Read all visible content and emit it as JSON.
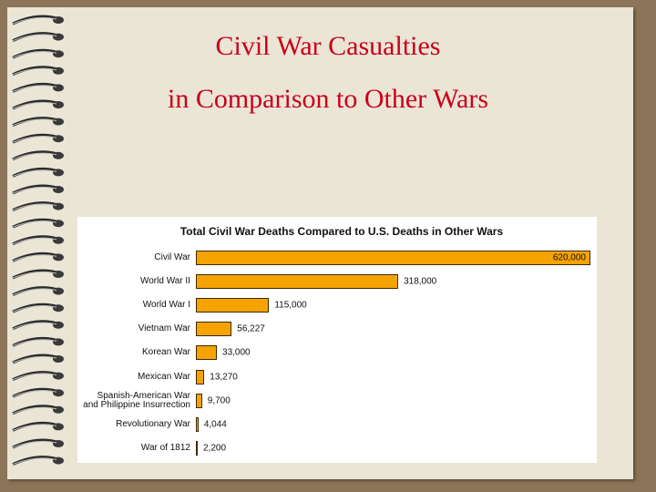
{
  "slide_title": [
    "Civil War Casualties",
    "in Comparison to Other Wars"
  ],
  "chart_data": {
    "type": "bar",
    "orientation": "horizontal",
    "title": "Total Civil War Deaths Compared to U.S. Deaths in Other Wars",
    "categories": [
      "Civil War",
      "World War II",
      "World War I",
      "Vietnam War",
      "Korean War",
      "Mexican War",
      "Spanish-American War\nand Philippine Insurrection",
      "Revolutionary War",
      "War of 1812"
    ],
    "values": [
      620000,
      318000,
      115000,
      56227,
      33000,
      13270,
      9700,
      4044,
      2200
    ],
    "value_labels": [
      "620,000",
      "318,000",
      "115,000",
      "56,227",
      "33,000",
      "13,270",
      "9,700",
      "4,044",
      "2,200"
    ],
    "color": "#f5a300",
    "xlim": [
      0,
      620000
    ]
  }
}
